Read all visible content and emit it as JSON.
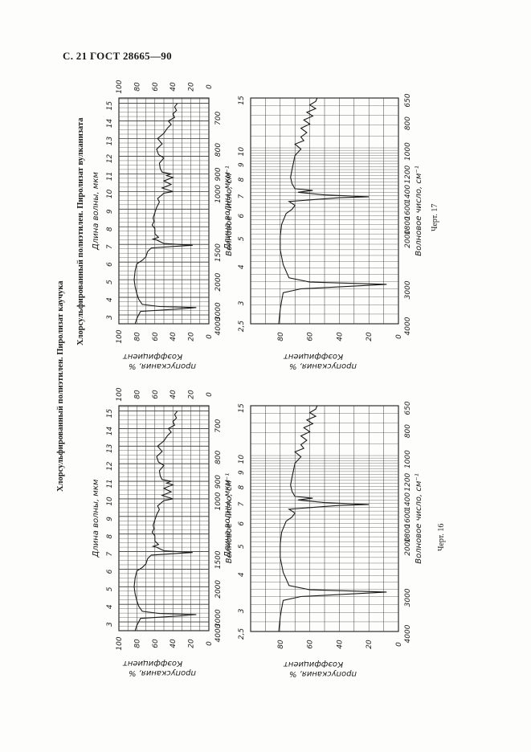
{
  "header": "С. 21 ГОСТ 28665—90",
  "groups": [
    {
      "title": "Хлорсульфированный полиэтилен. Пиролизат каучука",
      "figure_caption": "Черт. 16",
      "chart_a": {
        "lambda_ticks": [
          3,
          4,
          5,
          6,
          7,
          8,
          9,
          10,
          11,
          12,
          13,
          14,
          15
        ],
        "wavenumber_ticks": [
          4000,
          3000,
          2000,
          1500,
          1000,
          900,
          800,
          700
        ],
        "transmission_ticks": [
          100,
          80,
          60,
          40,
          20,
          0
        ],
        "lambda_label": "Длина волны, мкм",
        "wavenumber_label": "Волновое число, см⁻¹",
        "ylabel_1": "Коэффициент",
        "ylabel_2": "пропускания, %"
      },
      "chart_b": {
        "lambda_ticks": [
          "2,5",
          3,
          4,
          5,
          6,
          7,
          8,
          9,
          10,
          15
        ],
        "wavenumber_ticks": [
          4000,
          3000,
          2000,
          1800,
          1600,
          1400,
          1200,
          1000,
          800,
          650
        ],
        "transmission_ticks": [
          80,
          60,
          40,
          20,
          0
        ],
        "lambda_label": "Длина волны, мкм",
        "wavenumber_label": "Волновое число, см⁻¹",
        "ylabel_1": "Коэффициент",
        "ylabel_2": "пропускания, %"
      }
    },
    {
      "title": "Хлорсульфированный полиэтилен. Пиролизат вулканизата",
      "figure_caption": "Черт. 17",
      "chart_a": {
        "lambda_ticks": [
          3,
          4,
          5,
          6,
          7,
          8,
          9,
          10,
          11,
          12,
          13,
          14,
          15
        ],
        "wavenumber_ticks": [
          4000,
          3000,
          2000,
          1500,
          1000,
          900,
          800,
          700
        ],
        "transmission_ticks": [
          100,
          80,
          60,
          40,
          20,
          0
        ],
        "lambda_label": "Длина волны, мкм",
        "wavenumber_label": "Волновое число, см⁻¹",
        "ylabel_1": "Коэффициент",
        "ylabel_2": "пропускания, %"
      },
      "chart_b": {
        "lambda_ticks": [
          "2,5",
          3,
          4,
          5,
          6,
          7,
          8,
          9,
          10,
          15
        ],
        "wavenumber_ticks": [
          4000,
          3000,
          2000,
          1800,
          1600,
          1400,
          1200,
          1000,
          800,
          650
        ],
        "transmission_ticks": [
          80,
          60,
          40,
          20,
          0
        ],
        "lambda_label": "Длина волны, мкм",
        "wavenumber_label": "Волновое число, см⁻¹",
        "ylabel_1": "Коэффициент",
        "ylabel_2": "пропускания, %"
      }
    }
  ],
  "spectra": {
    "chart_a": {
      "lambda": [
        2.5,
        2.8,
        3.0,
        3.2,
        3.35,
        3.42,
        3.48,
        3.6,
        3.9,
        4.2,
        4.6,
        5.0,
        5.5,
        5.9,
        6.1,
        6.3,
        6.6,
        6.8,
        6.9,
        6.95,
        7.05,
        7.25,
        7.3,
        7.4,
        7.6,
        7.9,
        8.1,
        8.3,
        8.5,
        8.8,
        9.1,
        9.4,
        9.6,
        9.9,
        10.0,
        10.2,
        10.4,
        10.6,
        10.8,
        10.9,
        11.0,
        11.1,
        11.3,
        11.6,
        11.9,
        12.1,
        12.4,
        12.7,
        13.0,
        13.3,
        13.6,
        13.8,
        14.0,
        14.2,
        14.4,
        14.6,
        14.8,
        15.0
      ],
      "transmission": [
        82,
        80,
        78,
        76,
        30,
        14,
        55,
        74,
        78,
        80,
        82,
        83,
        82,
        80,
        74,
        70,
        68,
        64,
        35,
        18,
        50,
        58,
        62,
        56,
        60,
        60,
        63,
        61,
        62,
        60,
        58,
        55,
        57,
        50,
        40,
        52,
        42,
        50,
        40,
        47,
        42,
        52,
        54,
        55,
        50,
        56,
        58,
        52,
        57,
        50,
        46,
        42,
        45,
        38,
        40,
        36,
        38,
        35
      ]
    },
    "chart_b": {
      "lambda": [
        2.5,
        2.8,
        3.0,
        3.2,
        3.3,
        3.42,
        3.48,
        3.6,
        4.0,
        4.5,
        5.0,
        5.5,
        6.0,
        6.2,
        6.4,
        6.6,
        6.8,
        6.85,
        6.95,
        7.1,
        7.2,
        7.25,
        7.3,
        7.6,
        8.0,
        8.5,
        9.0,
        9.5,
        10.0,
        10.4,
        10.7,
        11.0,
        11.4,
        11.8,
        12.2,
        12.6,
        13.0,
        13.4,
        13.8,
        14.2,
        14.6,
        15.0
      ],
      "transmission": [
        81,
        80,
        79,
        78,
        66,
        8,
        60,
        74,
        78,
        80,
        80,
        79,
        76,
        72,
        70,
        74,
        40,
        20,
        50,
        68,
        58,
        64,
        70,
        72,
        73,
        72,
        71,
        70,
        66,
        70,
        64,
        66,
        62,
        66,
        60,
        64,
        58,
        62,
        56,
        60,
        56,
        55
      ]
    }
  },
  "colors": {
    "ink": "#1a1a1a",
    "grid": "#3a3a3a",
    "paper": "#fdfdfc"
  }
}
